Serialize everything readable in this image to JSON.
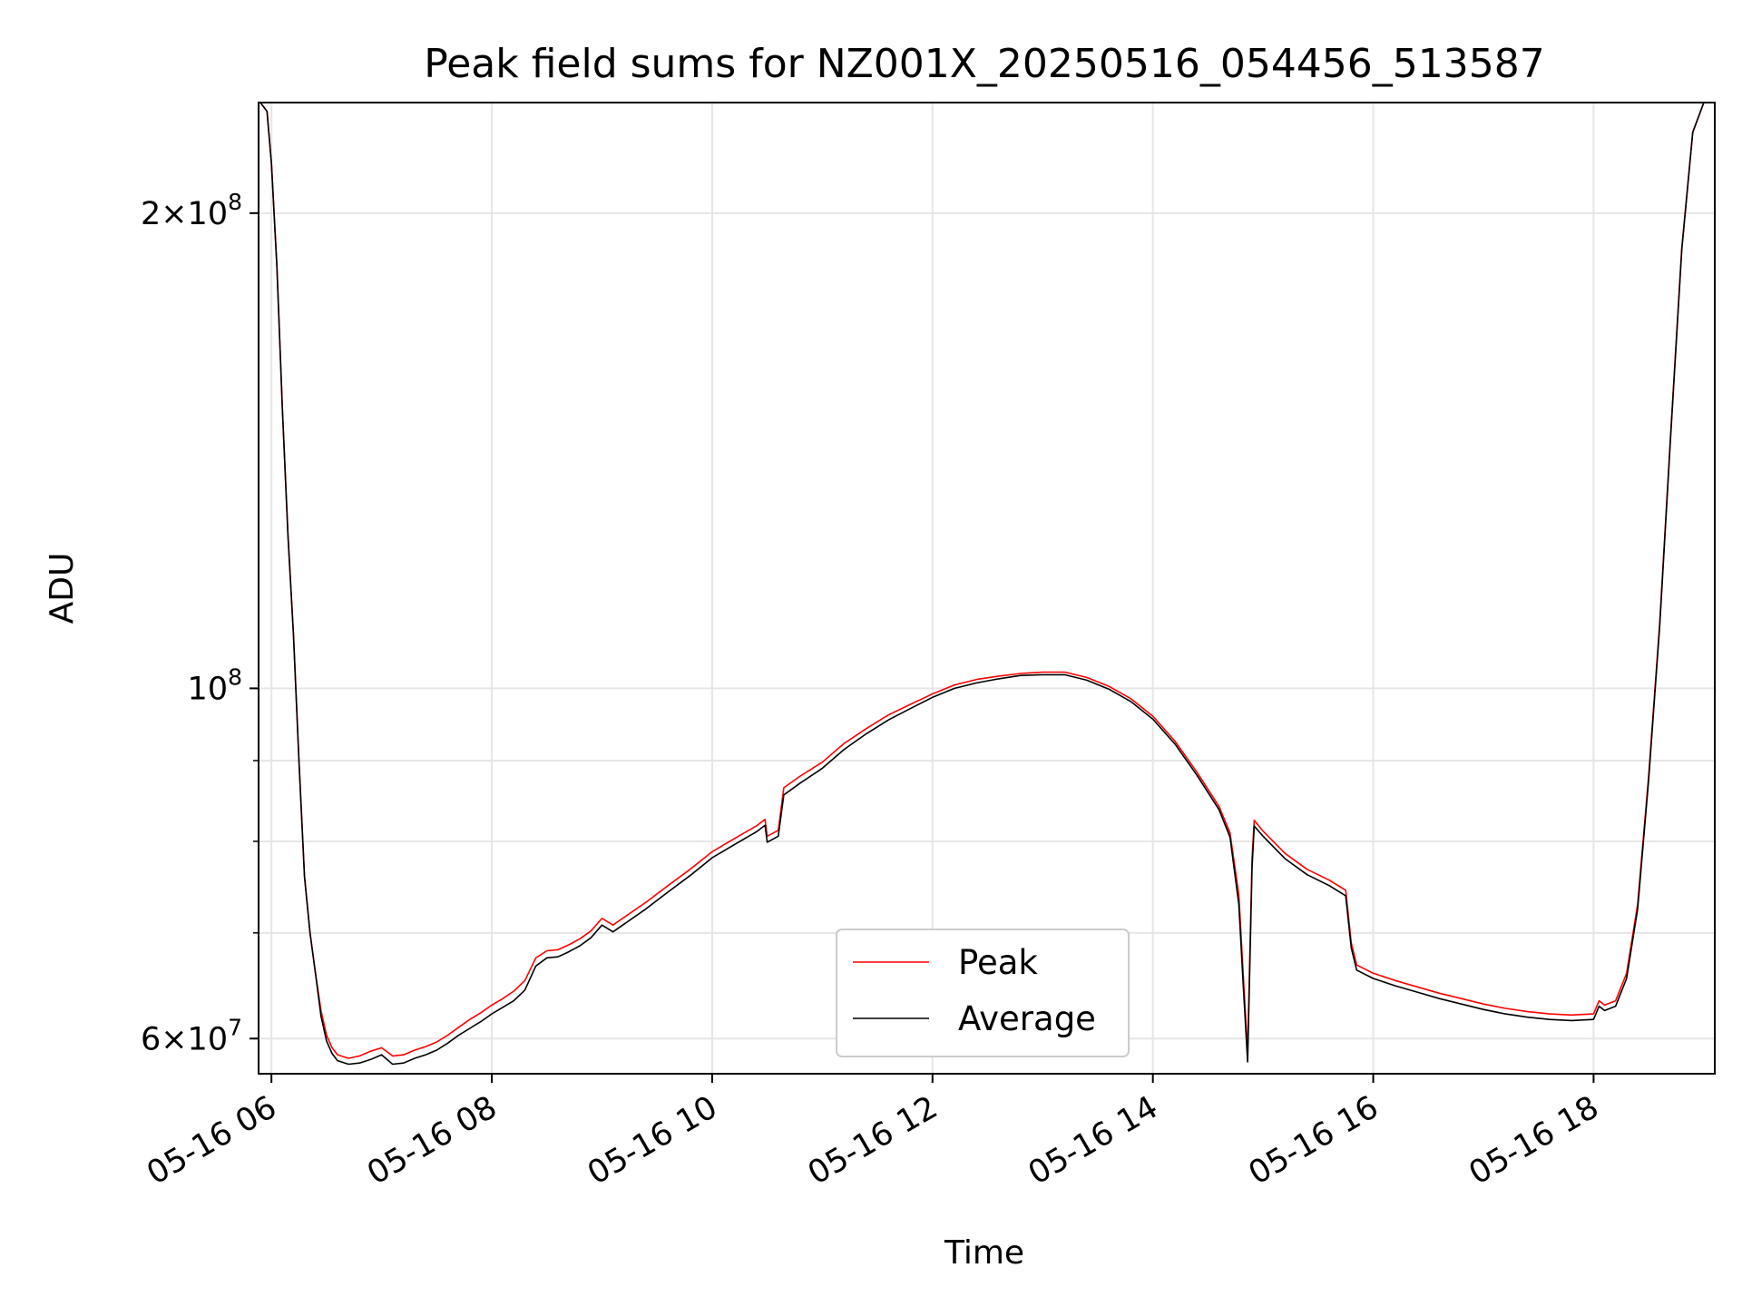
{
  "chart_data": {
    "type": "line",
    "title": "Peak field sums for NZ001X_20250516_054456_513587",
    "xlabel": "Time",
    "ylabel": "ADU",
    "yscale": "log",
    "xlim": [
      "2025-05-16 05:53",
      "2025-05-16 19:06"
    ],
    "ylim": [
      57000000,
      235000000
    ],
    "x_ticks": [
      "05-16 06",
      "05-16 08",
      "05-16 10",
      "05-16 12",
      "05-16 14",
      "05-16 16",
      "05-16 18"
    ],
    "y_ticks": [
      {
        "value": 200000000,
        "mantissa": "2",
        "exponent": "8"
      },
      {
        "value": 100000000,
        "mantissa": "",
        "exponent": "8"
      },
      {
        "value": 60000000,
        "mantissa": "6",
        "exponent": "7"
      }
    ],
    "y_minor_ticks": [
      70000000,
      80000000,
      90000000
    ],
    "grid": true,
    "legend_position": "bottom-center",
    "x_unit": "hour of 2025-05-16 (decimal)",
    "series": [
      {
        "name": "Peak",
        "color": "#ff0000",
        "points": [
          [
            5.9,
            235000000
          ],
          [
            5.96,
            232000000
          ],
          [
            6.0,
            215000000
          ],
          [
            6.05,
            185000000
          ],
          [
            6.1,
            150000000
          ],
          [
            6.15,
            125000000
          ],
          [
            6.2,
            108000000
          ],
          [
            6.25,
            90000000
          ],
          [
            6.3,
            76000000
          ],
          [
            6.35,
            70000000
          ],
          [
            6.4,
            66000000
          ],
          [
            6.45,
            62500000
          ],
          [
            6.5,
            60300000
          ],
          [
            6.55,
            59200000
          ],
          [
            6.6,
            58600000
          ],
          [
            6.7,
            58300000
          ],
          [
            6.8,
            58500000
          ],
          [
            6.9,
            58900000
          ],
          [
            7.0,
            59200000
          ],
          [
            7.1,
            58500000
          ],
          [
            7.2,
            58600000
          ],
          [
            7.3,
            59000000
          ],
          [
            7.4,
            59300000
          ],
          [
            7.5,
            59700000
          ],
          [
            7.6,
            60300000
          ],
          [
            7.7,
            61000000
          ],
          [
            7.8,
            61700000
          ],
          [
            7.9,
            62300000
          ],
          [
            8.0,
            63000000
          ],
          [
            8.1,
            63600000
          ],
          [
            8.2,
            64300000
          ],
          [
            8.3,
            65300000
          ],
          [
            8.4,
            67500000
          ],
          [
            8.5,
            68200000
          ],
          [
            8.6,
            68300000
          ],
          [
            8.7,
            68800000
          ],
          [
            8.8,
            69400000
          ],
          [
            8.9,
            70200000
          ],
          [
            9.0,
            71500000
          ],
          [
            9.1,
            70800000
          ],
          [
            9.2,
            71600000
          ],
          [
            9.4,
            73200000
          ],
          [
            9.6,
            75000000
          ],
          [
            9.8,
            76800000
          ],
          [
            10.0,
            78800000
          ],
          [
            10.2,
            80300000
          ],
          [
            10.4,
            81800000
          ],
          [
            10.48,
            82600000
          ],
          [
            10.5,
            80600000
          ],
          [
            10.6,
            81300000
          ],
          [
            10.65,
            86500000
          ],
          [
            10.8,
            88000000
          ],
          [
            11.0,
            89800000
          ],
          [
            11.2,
            92300000
          ],
          [
            11.4,
            94300000
          ],
          [
            11.6,
            96200000
          ],
          [
            11.8,
            97700000
          ],
          [
            12.0,
            99200000
          ],
          [
            12.2,
            100500000
          ],
          [
            12.4,
            101300000
          ],
          [
            12.6,
            101800000
          ],
          [
            12.8,
            102200000
          ],
          [
            13.0,
            102400000
          ],
          [
            13.2,
            102400000
          ],
          [
            13.4,
            101600000
          ],
          [
            13.6,
            100300000
          ],
          [
            13.8,
            98500000
          ],
          [
            14.0,
            96000000
          ],
          [
            14.2,
            92600000
          ],
          [
            14.4,
            88500000
          ],
          [
            14.6,
            84200000
          ],
          [
            14.7,
            81000000
          ],
          [
            14.78,
            74000000
          ],
          [
            14.82,
            66000000
          ],
          [
            14.86,
            58800000
          ],
          [
            14.9,
            78000000
          ],
          [
            14.92,
            82500000
          ],
          [
            15.0,
            81200000
          ],
          [
            15.2,
            78600000
          ],
          [
            15.4,
            76800000
          ],
          [
            15.6,
            75600000
          ],
          [
            15.75,
            74500000
          ],
          [
            15.8,
            69000000
          ],
          [
            15.85,
            66800000
          ],
          [
            16.0,
            66000000
          ],
          [
            16.2,
            65300000
          ],
          [
            16.4,
            64700000
          ],
          [
            16.6,
            64100000
          ],
          [
            16.8,
            63600000
          ],
          [
            17.0,
            63100000
          ],
          [
            17.2,
            62700000
          ],
          [
            17.4,
            62400000
          ],
          [
            17.6,
            62200000
          ],
          [
            17.8,
            62100000
          ],
          [
            18.0,
            62200000
          ],
          [
            18.05,
            63400000
          ],
          [
            18.1,
            63000000
          ],
          [
            18.2,
            63400000
          ],
          [
            18.3,
            66000000
          ],
          [
            18.4,
            73000000
          ],
          [
            18.5,
            88000000
          ],
          [
            18.6,
            110000000
          ],
          [
            18.7,
            145000000
          ],
          [
            18.8,
            190000000
          ],
          [
            18.9,
            225000000
          ],
          [
            19.0,
            235000000
          ],
          [
            19.1,
            235000000
          ]
        ]
      },
      {
        "name": "Average",
        "color": "#000000",
        "points": [
          [
            5.9,
            235000000
          ],
          [
            5.96,
            232000000
          ],
          [
            6.0,
            215000000
          ],
          [
            6.05,
            185000000
          ],
          [
            6.1,
            150000000
          ],
          [
            6.15,
            125000000
          ],
          [
            6.2,
            108000000
          ],
          [
            6.25,
            90000000
          ],
          [
            6.3,
            76000000
          ],
          [
            6.35,
            70000000
          ],
          [
            6.4,
            66000000
          ],
          [
            6.45,
            62000000
          ],
          [
            6.5,
            59800000
          ],
          [
            6.55,
            58700000
          ],
          [
            6.6,
            58100000
          ],
          [
            6.7,
            57800000
          ],
          [
            6.8,
            57900000
          ],
          [
            6.9,
            58200000
          ],
          [
            7.0,
            58600000
          ],
          [
            7.1,
            57800000
          ],
          [
            7.2,
            57900000
          ],
          [
            7.3,
            58300000
          ],
          [
            7.4,
            58600000
          ],
          [
            7.5,
            59000000
          ],
          [
            7.6,
            59600000
          ],
          [
            7.7,
            60300000
          ],
          [
            7.8,
            60900000
          ],
          [
            7.9,
            61500000
          ],
          [
            8.0,
            62200000
          ],
          [
            8.1,
            62800000
          ],
          [
            8.2,
            63400000
          ],
          [
            8.3,
            64400000
          ],
          [
            8.4,
            66700000
          ],
          [
            8.5,
            67500000
          ],
          [
            8.6,
            67600000
          ],
          [
            8.7,
            68100000
          ],
          [
            8.8,
            68700000
          ],
          [
            8.9,
            69500000
          ],
          [
            9.0,
            70800000
          ],
          [
            9.1,
            70100000
          ],
          [
            9.2,
            70900000
          ],
          [
            9.4,
            72500000
          ],
          [
            9.6,
            74300000
          ],
          [
            9.8,
            76100000
          ],
          [
            10.0,
            78100000
          ],
          [
            10.2,
            79600000
          ],
          [
            10.4,
            81100000
          ],
          [
            10.48,
            81900000
          ],
          [
            10.5,
            79900000
          ],
          [
            10.6,
            80600000
          ],
          [
            10.65,
            85600000
          ],
          [
            10.8,
            87100000
          ],
          [
            11.0,
            89000000
          ],
          [
            11.2,
            91500000
          ],
          [
            11.4,
            93600000
          ],
          [
            11.6,
            95500000
          ],
          [
            11.8,
            97100000
          ],
          [
            12.0,
            98700000
          ],
          [
            12.2,
            100000000
          ],
          [
            12.4,
            100800000
          ],
          [
            12.6,
            101400000
          ],
          [
            12.8,
            101900000
          ],
          [
            13.0,
            102000000
          ],
          [
            13.2,
            102000000
          ],
          [
            13.4,
            101200000
          ],
          [
            13.6,
            99900000
          ],
          [
            13.8,
            98100000
          ],
          [
            14.0,
            95600000
          ],
          [
            14.2,
            92200000
          ],
          [
            14.4,
            88100000
          ],
          [
            14.6,
            83800000
          ],
          [
            14.7,
            80500000
          ],
          [
            14.78,
            73000000
          ],
          [
            14.82,
            65000000
          ],
          [
            14.86,
            58000000
          ],
          [
            14.9,
            77000000
          ],
          [
            14.92,
            81800000
          ],
          [
            15.0,
            80600000
          ],
          [
            15.2,
            78000000
          ],
          [
            15.4,
            76200000
          ],
          [
            15.6,
            75000000
          ],
          [
            15.75,
            73900000
          ],
          [
            15.8,
            68500000
          ],
          [
            15.85,
            66300000
          ],
          [
            16.0,
            65500000
          ],
          [
            16.2,
            64800000
          ],
          [
            16.4,
            64200000
          ],
          [
            16.6,
            63600000
          ],
          [
            16.8,
            63100000
          ],
          [
            17.0,
            62600000
          ],
          [
            17.2,
            62200000
          ],
          [
            17.4,
            61900000
          ],
          [
            17.6,
            61700000
          ],
          [
            17.8,
            61600000
          ],
          [
            18.0,
            61700000
          ],
          [
            18.05,
            62900000
          ],
          [
            18.1,
            62500000
          ],
          [
            18.2,
            62900000
          ],
          [
            18.3,
            65500000
          ],
          [
            18.4,
            72500000
          ],
          [
            18.5,
            87500000
          ],
          [
            18.6,
            109500000
          ],
          [
            18.7,
            144500000
          ],
          [
            18.8,
            189500000
          ],
          [
            18.9,
            225000000
          ],
          [
            19.0,
            235000000
          ],
          [
            19.1,
            235000000
          ]
        ]
      }
    ]
  }
}
